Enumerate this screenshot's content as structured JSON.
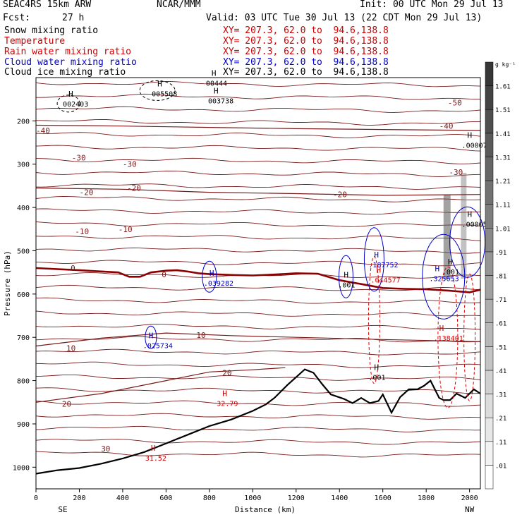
{
  "header": {
    "run_title": "SEAC4RS 15km ARW",
    "org": "NCAR/MMM",
    "init": "Init: 00 UTC Mon 29 Jul 13",
    "fcst_label": "Fcst:",
    "fcst_value": "27 h",
    "valid": "Valid: 03 UTC Tue 30 Jul 13 (22 CDT Mon 29 Jul 13)"
  },
  "fields": [
    {
      "name": "Snow mixing ratio",
      "xy": "XY= 207.3, 62.0 to  94.6,138.8",
      "color": "#000000"
    },
    {
      "name": "Temperature",
      "xy": "XY= 207.3, 62.0 to  94.6,138.8",
      "color": "#cc0000"
    },
    {
      "name": "Rain water mixing ratio",
      "xy": "XY= 207.3, 62.0 to  94.6,138.8",
      "color": "#cc0000"
    },
    {
      "name": "Cloud water mixing ratio",
      "xy": "XY= 207.3, 62.0 to  94.6,138.8",
      "color": "#0000cc"
    },
    {
      "name": "Cloud ice mixing ratio",
      "xy": "XY= 207.3, 62.0 to  94.6,138.8",
      "color": "#000000"
    }
  ],
  "colorbar": {
    "unit": "g kg⁻¹",
    "labels": [
      ".01",
      ".11",
      ".21",
      ".31",
      ".41",
      ".51",
      ".61",
      ".71",
      ".81",
      ".91",
      "1.01",
      "1.11",
      "1.21",
      "1.31",
      "1.41",
      "1.51",
      "1.61"
    ]
  },
  "chart_data": {
    "type": "cross-section contour",
    "xlabel": "Distance (km)",
    "ylabel": "Pressure (hPa)",
    "xlim": [
      0,
      2050
    ],
    "ylim": [
      1050,
      100
    ],
    "x_ticks": [
      "0",
      "200",
      "400",
      "600",
      "800",
      "1000",
      "1200",
      "1400",
      "1600",
      "1800",
      "2000"
    ],
    "y_ticks": [
      "200",
      "300",
      "400",
      "500",
      "600",
      "700",
      "800",
      "900",
      "1000"
    ],
    "x_ends": {
      "left": "SE",
      "right": "NW"
    },
    "temperature_labels": [
      {
        "text": "-40",
        "x": -30,
        "p": 222
      },
      {
        "text": "-30",
        "x": 165,
        "p": 285
      },
      {
        "text": "-30",
        "x": 400,
        "p": 300
      },
      {
        "text": "-20",
        "x": 200,
        "p": 365
      },
      {
        "text": "-20",
        "x": 420,
        "p": 355
      },
      {
        "text": "-20",
        "x": 1370,
        "p": 370
      },
      {
        "text": "-10",
        "x": 180,
        "p": 455
      },
      {
        "text": "-10",
        "x": 380,
        "p": 450
      },
      {
        "text": "0",
        "x": 160,
        "p": 540
      },
      {
        "text": "0",
        "x": 580,
        "p": 555
      },
      {
        "text": "10",
        "x": 140,
        "p": 725
      },
      {
        "text": "10",
        "x": 740,
        "p": 695
      },
      {
        "text": "20",
        "x": 860,
        "p": 782
      },
      {
        "text": "20",
        "x": 120,
        "p": 854
      },
      {
        "text": "30",
        "x": 300,
        "p": 957
      },
      {
        "text": "-50",
        "x": 1900,
        "p": 158
      },
      {
        "text": "-40",
        "x": 1860,
        "p": 212
      },
      {
        "text": "-30",
        "x": 1905,
        "p": 318
      }
    ],
    "highs": [
      {
        "value": "002403",
        "x": 150,
        "p": 160
      },
      {
        "value": "005508",
        "x": 560,
        "p": 137
      },
      {
        "value": "003738",
        "x": 820,
        "p": 153
      },
      {
        "value": "00444",
        "x": 810,
        "p": 112
      },
      {
        "value": ".039282",
        "x": 800,
        "p": 574
      },
      {
        "value": ".025734",
        "x": 520,
        "p": 718
      },
      {
        "value": "32.79",
        "x": 860,
        "p": 852
      },
      {
        "value": "31.52",
        "x": 530,
        "p": 978
      },
      {
        "value": ".187752",
        "x": 1560,
        "p": 532
      },
      {
        "value": ".044577",
        "x": 1570,
        "p": 567
      },
      {
        "value": ".001",
        "x": 1420,
        "p": 578
      },
      {
        "value": ".325653",
        "x": 1840,
        "p": 564
      },
      {
        "value": ".001",
        "x": 1900,
        "p": 548
      },
      {
        "value": ".138401",
        "x": 1860,
        "p": 701
      },
      {
        "value": ".000075",
        "x": 1990,
        "p": 256
      },
      {
        "value": ".00005",
        "x": 1990,
        "p": 438
      },
      {
        "value": ".001",
        "x": 1560,
        "p": 792
      }
    ],
    "series": [
      {
        "name": "Terrain",
        "x": [
          0,
          100,
          200,
          300,
          400,
          500,
          600,
          700,
          800,
          900,
          1000,
          1060,
          1100,
          1160,
          1200,
          1240,
          1280,
          1320,
          1360,
          1420,
          1460,
          1500,
          1540,
          1580,
          1600,
          1640,
          1680,
          1720,
          1760,
          1790,
          1820,
          1860,
          1880,
          1910,
          1940,
          1980,
          2000,
          2020,
          2050
        ],
        "p": [
          1015,
          1007,
          1002,
          992,
          980,
          965,
          945,
          925,
          905,
          890,
          870,
          855,
          840,
          810,
          792,
          774,
          782,
          808,
          832,
          842,
          852,
          840,
          852,
          847,
          832,
          874,
          838,
          820,
          820,
          812,
          800,
          840,
          845,
          845,
          830,
          840,
          830,
          820,
          830
        ]
      },
      {
        "name": "0 C isotherm",
        "x": [
          0,
          200,
          380,
          430,
          480,
          530,
          600,
          650,
          700,
          750,
          800,
          900,
          1000,
          1100,
          1200,
          1300,
          1400,
          1500,
          1600,
          1700,
          1800,
          1900,
          2000,
          2050
        ],
        "p": [
          540,
          545,
          550,
          560,
          560,
          550,
          546,
          545,
          548,
          552,
          554,
          556,
          557,
          555,
          552,
          553,
          568,
          577,
          586,
          588,
          589,
          592,
          596,
          590
        ]
      },
      {
        "name": "-40 C isotherm",
        "x": [
          0,
          400,
          800,
          1200,
          1600,
          2050
        ],
        "p": [
          210,
          212,
          215,
          218,
          220,
          222
        ]
      },
      {
        "name": "-20 C isotherm",
        "x": [
          0,
          400,
          800,
          1200,
          1600,
          2050
        ],
        "p": [
          355,
          358,
          365,
          368,
          372,
          370
        ]
      },
      {
        "name": "10 C isotherm",
        "x": [
          0,
          300,
          600,
          900,
          1200,
          1600,
          2050
        ],
        "p": [
          720,
          702,
          690,
          696,
          700,
          705,
          710
        ]
      },
      {
        "name": "20 C isotherm",
        "x": [
          0,
          300,
          600,
          800,
          1000,
          1150
        ],
        "p": [
          850,
          830,
          800,
          780,
          775,
          770
        ]
      }
    ]
  }
}
